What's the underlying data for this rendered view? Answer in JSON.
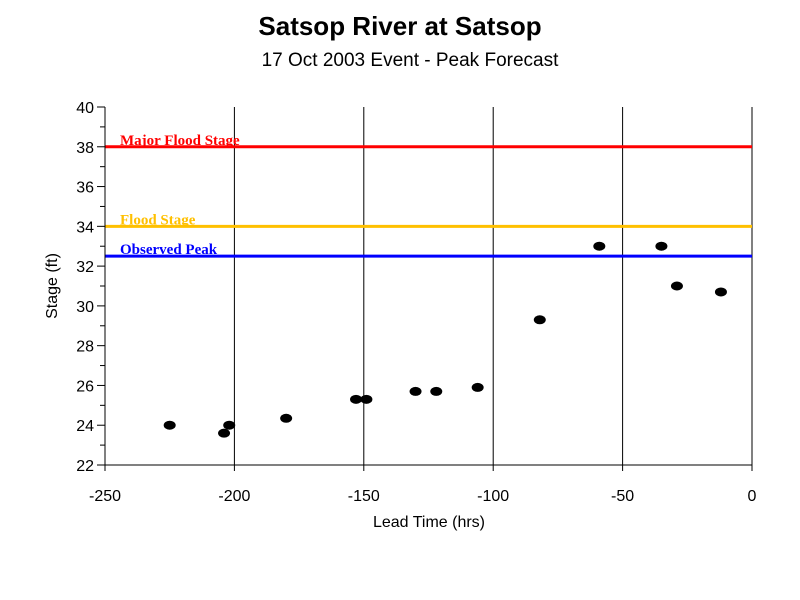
{
  "chart_data": {
    "type": "scatter",
    "title": "Satsop River at Satsop",
    "subtitle": "17 Oct 2003 Event - Peak Forecast",
    "xlabel": "Lead Time (hrs)",
    "ylabel": "Stage (ft)",
    "xlim": [
      -250,
      0
    ],
    "ylim": [
      22,
      40
    ],
    "x_ticks": [
      -250,
      -200,
      -150,
      -100,
      -50,
      0
    ],
    "x_tick_labels": [
      "-250",
      "-200",
      "-150",
      "-100",
      "-50",
      "0"
    ],
    "y_ticks": [
      22,
      24,
      26,
      28,
      30,
      32,
      34,
      36,
      38,
      40
    ],
    "y_tick_labels": [
      "22",
      "24",
      "26",
      "28",
      "30",
      "32",
      "34",
      "36",
      "38",
      "40"
    ],
    "vertical_grid": true,
    "point_color": "#000000",
    "points": [
      {
        "x": -225,
        "y": 24.0
      },
      {
        "x": -204,
        "y": 23.6
      },
      {
        "x": -202,
        "y": 24.0
      },
      {
        "x": -180,
        "y": 24.35
      },
      {
        "x": -153,
        "y": 25.3
      },
      {
        "x": -149,
        "y": 25.3
      },
      {
        "x": -130,
        "y": 25.7
      },
      {
        "x": -122,
        "y": 25.7
      },
      {
        "x": -106,
        "y": 25.9
      },
      {
        "x": -82,
        "y": 29.3
      },
      {
        "x": -59,
        "y": 33.0
      },
      {
        "x": -35,
        "y": 33.0
      },
      {
        "x": -29,
        "y": 31.0
      },
      {
        "x": -12,
        "y": 30.7
      }
    ],
    "reference_lines": [
      {
        "label": "Major Flood Stage",
        "y": 38,
        "color": "#ff0000"
      },
      {
        "label": "Flood Stage",
        "y": 34,
        "color": "#ffc000"
      },
      {
        "label": "Observed Peak",
        "y": 32.5,
        "color": "#0000ff"
      }
    ]
  }
}
